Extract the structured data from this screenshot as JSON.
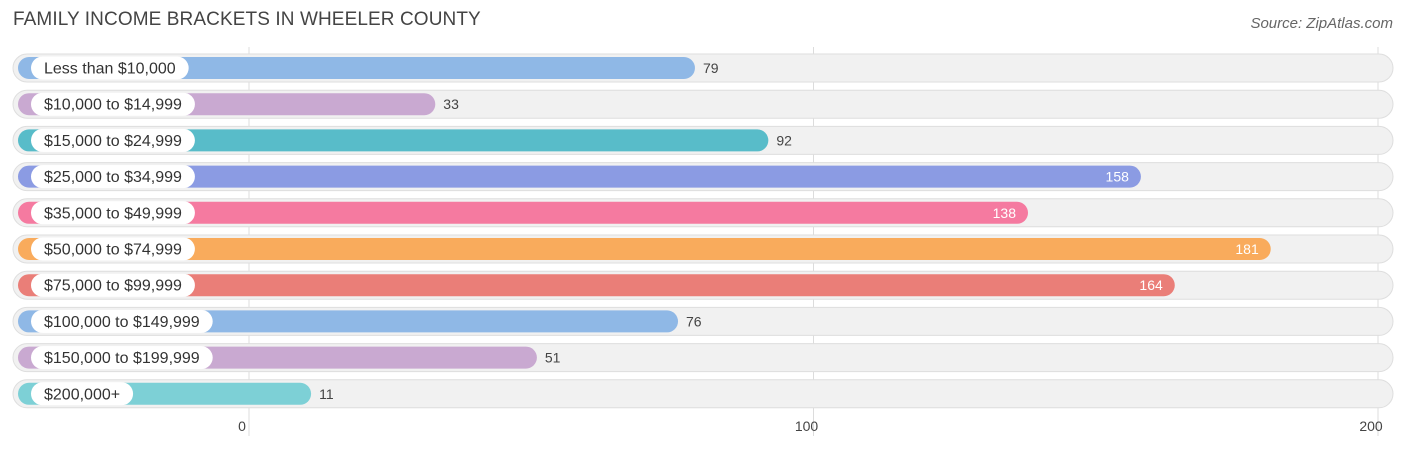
{
  "header": {
    "title": "FAMILY INCOME BRACKETS IN WHEELER COUNTY",
    "source": "Source: ZipAtlas.com"
  },
  "chart_data": {
    "type": "bar",
    "orientation": "horizontal",
    "title": "FAMILY INCOME BRACKETS IN WHEELER COUNTY",
    "xlabel": "",
    "ylabel": "",
    "xlim": [
      0,
      200
    ],
    "ticks": [
      0,
      100,
      200
    ],
    "tick_labels": [
      "0",
      "100",
      "200"
    ],
    "grid": true,
    "categories": [
      "Less than $10,000",
      "$10,000 to $14,999",
      "$15,000 to $24,999",
      "$25,000 to $34,999",
      "$35,000 to $49,999",
      "$50,000 to $74,999",
      "$75,000 to $99,999",
      "$100,000 to $149,999",
      "$150,000 to $199,999",
      "$200,000+"
    ],
    "values": [
      79,
      33,
      92,
      158,
      138,
      181,
      164,
      76,
      51,
      11
    ],
    "colors": [
      "#8fb8e6",
      "#c9a9d1",
      "#58bcc9",
      "#8b9be3",
      "#f57aa0",
      "#f9ab5c",
      "#ea7e78",
      "#8fb8e6",
      "#c9a9d1",
      "#7dd0d6"
    ]
  }
}
